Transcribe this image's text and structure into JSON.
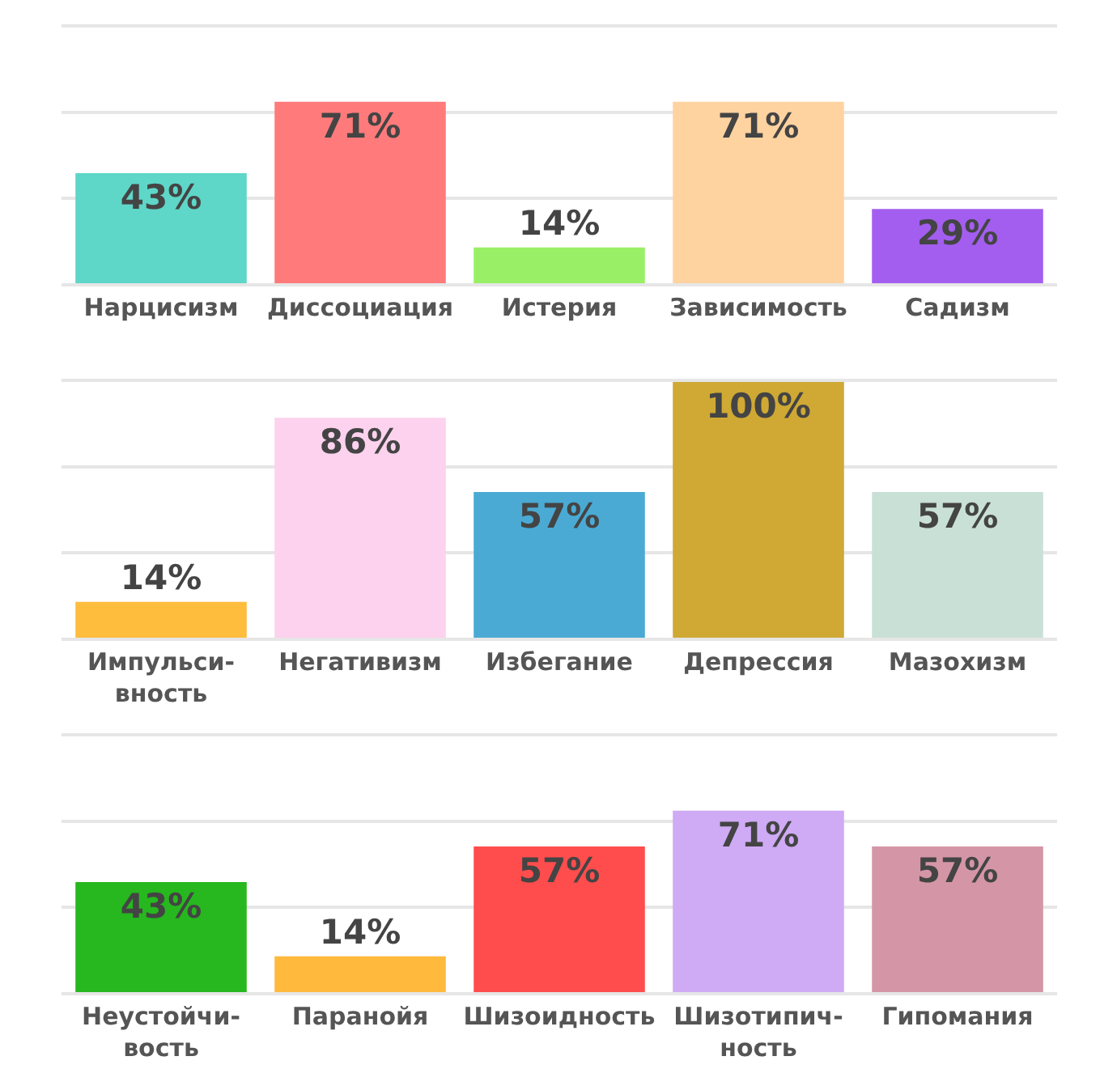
{
  "chart_data": [
    {
      "type": "bar",
      "categories": [
        "Нарцисизм",
        "Диссоциация",
        "Истерия",
        "Зависимость",
        "Садизм"
      ],
      "values": [
        43,
        71,
        14,
        71,
        29
      ],
      "value_labels": [
        "43%",
        "71%",
        "14%",
        "71%",
        "29%"
      ],
      "colors": [
        "#5ed6c8",
        "#ff7b7b",
        "#99f066",
        "#ffd3a0",
        "#a35ef0"
      ],
      "ylim": [
        0,
        100
      ],
      "yticks": [
        {
          "value": 0,
          "label": null
        },
        {
          "value": 33.3,
          "label": null
        },
        {
          "value": 66.7,
          "label": null
        },
        {
          "value": 100,
          "label": null
        }
      ],
      "grid": "y",
      "tick_labels": "x"
    },
    {
      "type": "bar",
      "categories": [
        "Импульси-вность",
        "Негативизм",
        "Избегание",
        "Депрессия",
        "Мазохизм"
      ],
      "values": [
        14,
        86,
        57,
        100,
        57
      ],
      "value_labels": [
        "14%",
        "86%",
        "57%",
        "100%",
        "57%"
      ],
      "colors": [
        "#ffbd3d",
        "#fcd2ee",
        "#4aaad4",
        "#cfa934",
        "#c9e0d6"
      ],
      "ylim": [
        0,
        100
      ],
      "yticks": [
        {
          "value": 0,
          "label": null
        },
        {
          "value": 33.3,
          "label": null
        },
        {
          "value": 66.7,
          "label": null
        },
        {
          "value": 100,
          "label": null
        }
      ],
      "grid": "y",
      "tick_labels": "x"
    },
    {
      "type": "bar",
      "categories": [
        "Неустойчи-вость",
        "Паранойя",
        "Шизоидность",
        "Шизотипич-ность",
        "Гипомания"
      ],
      "values": [
        43,
        14,
        57,
        71,
        57
      ],
      "value_labels": [
        "43%",
        "14%",
        "57%",
        "71%",
        "57%"
      ],
      "colors": [
        "#26b81e",
        "#ffb93c",
        "#ff4d4d",
        "#cfaaf5",
        "#d496a6"
      ],
      "ylim": [
        0,
        100
      ],
      "yticks": [
        {
          "value": 0,
          "label": null
        },
        {
          "value": 33.3,
          "label": null
        },
        {
          "value": 66.7,
          "label": null
        },
        {
          "value": 100,
          "label": null
        }
      ],
      "grid": "y",
      "tick_labels": "x"
    }
  ]
}
